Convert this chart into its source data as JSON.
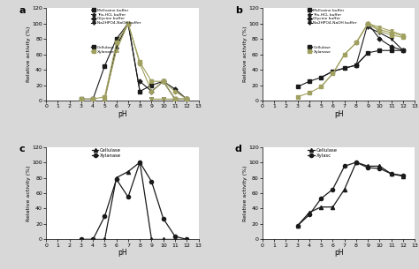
{
  "panel_a": {
    "cellulase": {
      "McIlvaine": {
        "x": [
          3,
          4,
          5,
          6,
          7,
          8,
          9,
          10,
          11,
          12
        ],
        "y": [
          2,
          2,
          45,
          80,
          100,
          12,
          20,
          25,
          2,
          2
        ]
      },
      "Tris_HCl": {
        "x": [
          5,
          6,
          7,
          8
        ],
        "y": [
          2,
          70,
          100,
          12
        ]
      },
      "Glycine": {
        "x": [
          8,
          9,
          10,
          11,
          12
        ],
        "y": [
          25,
          12,
          25,
          15,
          2
        ]
      },
      "Na2HPO4": {
        "x": [
          9,
          10,
          11,
          12
        ],
        "y": [
          2,
          2,
          2,
          2
        ]
      }
    },
    "xylanase": {
      "McIlvaine": {
        "x": [
          3,
          4,
          5,
          6,
          7,
          8,
          9,
          10,
          11,
          12
        ],
        "y": [
          2,
          2,
          5,
          75,
          100,
          50,
          25,
          25,
          2,
          2
        ]
      },
      "Tris_HCl": {
        "x": [
          5,
          6,
          7,
          8
        ],
        "y": [
          2,
          65,
          100,
          48
        ]
      },
      "Glycine": {
        "x": [
          8,
          9,
          10,
          11,
          12
        ],
        "y": [
          48,
          12,
          25,
          12,
          2
        ]
      },
      "Na2HPO4": {
        "x": [
          9,
          10,
          11,
          12
        ],
        "y": [
          2,
          2,
          2,
          2
        ]
      }
    }
  },
  "panel_b": {
    "cellulase": {
      "McIlvaine": {
        "x": [
          3,
          4,
          5,
          6,
          7,
          8,
          9,
          10,
          11,
          12
        ],
        "y": [
          18,
          25,
          30,
          38,
          42,
          46,
          62,
          65,
          65,
          65
        ]
      },
      "Tris_HCl": {
        "x": [
          5,
          6,
          7,
          8,
          9
        ],
        "y": [
          30,
          38,
          42,
          46,
          62
        ]
      },
      "Glycine": {
        "x": [
          8,
          9,
          10,
          11,
          12
        ],
        "y": [
          46,
          100,
          80,
          70,
          65
        ]
      },
      "Na2HPO4": {
        "x": [
          9,
          10,
          11,
          12
        ],
        "y": [
          95,
          88,
          80,
          65
        ]
      }
    },
    "xylanase": {
      "McIlvaine": {
        "x": [
          3,
          4,
          5,
          6,
          7,
          8,
          9,
          10,
          11,
          12
        ],
        "y": [
          5,
          10,
          18,
          35,
          60,
          75,
          100,
          90,
          85,
          82
        ]
      },
      "Tris_HCl": {
        "x": [
          5,
          6,
          7,
          8,
          9
        ],
        "y": [
          18,
          35,
          60,
          75,
          100
        ]
      },
      "Glycine": {
        "x": [
          8,
          9,
          10,
          11,
          12
        ],
        "y": [
          75,
          100,
          92,
          88,
          84
        ]
      },
      "Na2HPO4": {
        "x": [
          9,
          10,
          11,
          12
        ],
        "y": [
          100,
          95,
          90,
          85
        ]
      }
    }
  },
  "panel_c": {
    "cellulase": {
      "x": [
        3,
        4,
        5,
        6,
        7,
        8,
        9,
        10,
        11,
        12
      ],
      "y": [
        0,
        0,
        0,
        80,
        88,
        100,
        0,
        0,
        0,
        0
      ]
    },
    "xylanase": {
      "x": [
        3,
        4,
        5,
        6,
        7,
        8,
        9,
        10,
        11,
        12
      ],
      "y": [
        0,
        0,
        30,
        78,
        55,
        100,
        75,
        27,
        4,
        0
      ]
    }
  },
  "panel_d": {
    "cellulase": {
      "x": [
        3,
        4,
        5,
        6,
        7,
        8,
        9,
        10,
        11,
        12
      ],
      "y": [
        18,
        35,
        42,
        42,
        65,
        100,
        95,
        95,
        85,
        82
      ]
    },
    "xylanase": {
      "x": [
        3,
        4,
        5,
        6,
        7,
        8,
        9,
        10,
        11,
        12
      ],
      "y": [
        18,
        32,
        53,
        65,
        95,
        100,
        93,
        92,
        85,
        83
      ]
    }
  },
  "dark_color": "#1a1a1a",
  "light_color": "#a0a060",
  "fig_bg": "#d8d8d8",
  "plot_bg": "#ffffff",
  "ylim": [
    0,
    120
  ],
  "xlim": [
    0,
    13
  ],
  "xticks": [
    0,
    1,
    2,
    3,
    4,
    5,
    6,
    7,
    8,
    9,
    10,
    11,
    12,
    13
  ],
  "yticks": [
    0,
    20,
    40,
    60,
    80,
    100,
    120
  ],
  "legend_top_a": [
    "McIlvaine buffer",
    "Tris-HCL buffer",
    "Glycine buffer",
    "Na2HPO4-NaOH buffer"
  ],
  "legend_bot_a": [
    "Cellulase",
    "Xylanase"
  ],
  "legend_c": [
    "Cellulase",
    "Xylanase"
  ],
  "legend_d": [
    "Cellulase",
    "Xylasc"
  ]
}
